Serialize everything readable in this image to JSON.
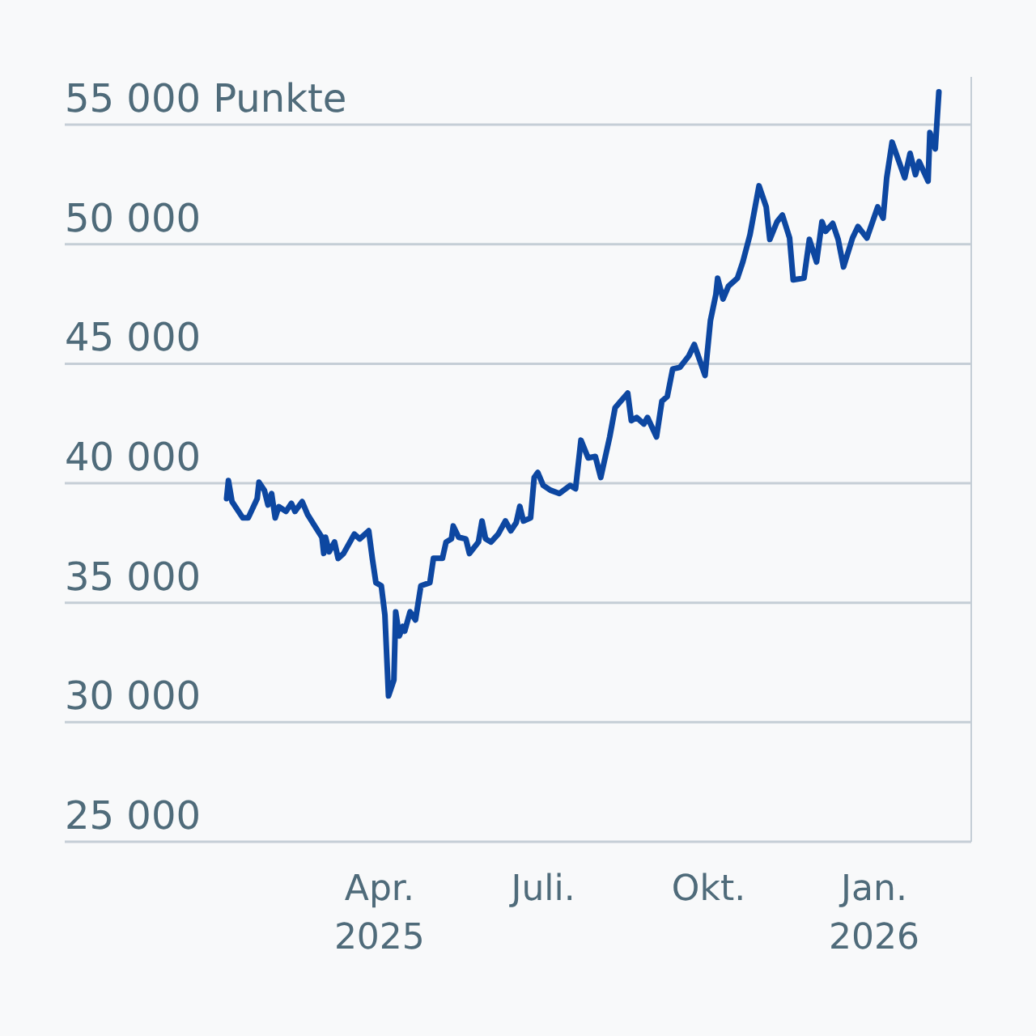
{
  "chart_data": {
    "type": "line",
    "x": [
      "2025-01-06",
      "2025-01-07",
      "2025-01-09",
      "2025-01-15",
      "2025-01-18",
      "2025-01-23",
      "2025-01-24",
      "2025-01-27",
      "2025-01-29",
      "2025-01-31",
      "2025-02-02",
      "2025-02-04",
      "2025-02-08",
      "2025-02-11",
      "2025-02-13",
      "2025-02-17",
      "2025-02-20",
      "2025-02-24",
      "2025-02-28",
      "2025-03-01",
      "2025-03-02",
      "2025-03-04",
      "2025-03-07",
      "2025-03-09",
      "2025-03-12",
      "2025-03-18",
      "2025-03-21",
      "2025-03-26",
      "2025-03-28",
      "2025-03-30",
      "2025-04-02",
      "2025-04-04",
      "2025-04-06",
      "2025-04-09",
      "2025-04-10",
      "2025-04-12",
      "2025-04-14",
      "2025-04-15",
      "2025-04-18",
      "2025-04-21",
      "2025-04-24",
      "2025-04-29",
      "2025-05-01",
      "2025-05-06",
      "2025-05-08",
      "2025-05-11",
      "2025-05-12",
      "2025-05-15",
      "2025-05-19",
      "2025-05-21",
      "2025-05-26",
      "2025-05-28",
      "2025-05-30",
      "2025-06-02",
      "2025-06-06",
      "2025-06-10",
      "2025-06-13",
      "2025-06-16",
      "2025-06-18",
      "2025-06-20",
      "2025-06-24",
      "2025-06-26",
      "2025-06-28",
      "2025-07-01",
      "2025-07-05",
      "2025-07-10",
      "2025-07-16",
      "2025-07-19",
      "2025-07-22",
      "2025-07-26",
      "2025-07-30",
      "2025-08-02",
      "2025-08-07",
      "2025-08-10",
      "2025-08-17",
      "2025-08-19",
      "2025-08-22",
      "2025-08-26",
      "2025-08-28",
      "2025-09-02",
      "2025-09-05",
      "2025-09-08",
      "2025-09-11",
      "2025-09-15",
      "2025-09-20",
      "2025-09-23",
      "2025-09-29",
      "2025-10-02",
      "2025-10-05",
      "2025-10-06",
      "2025-10-09",
      "2025-10-12",
      "2025-10-17",
      "2025-10-20",
      "2025-10-24",
      "2025-10-29",
      "2025-11-02",
      "2025-11-04",
      "2025-11-08",
      "2025-11-11",
      "2025-11-15",
      "2025-11-17",
      "2025-11-23",
      "2025-11-26",
      "2025-11-30",
      "2025-12-03",
      "2025-12-05",
      "2025-12-09",
      "2025-12-12",
      "2025-12-15",
      "2025-12-20",
      "2025-12-23",
      "2025-12-28",
      "2026-01-03",
      "2026-01-06",
      "2026-01-08",
      "2026-01-11",
      "2026-01-18",
      "2026-01-21",
      "2026-01-24",
      "2026-01-26",
      "2026-01-31",
      "2026-02-01",
      "2026-02-04",
      "2026-02-06"
    ],
    "series": [
      {
        "color": "#0d47a1",
        "values": [
          39360,
          40110,
          39230,
          38550,
          38550,
          39360,
          40040,
          39700,
          39090,
          39570,
          38550,
          39020,
          38820,
          39160,
          38820,
          39230,
          38690,
          38210,
          37740,
          37060,
          37740,
          37130,
          37540,
          36850,
          37060,
          37870,
          37670,
          38010,
          36860,
          35840,
          35710,
          34490,
          31100,
          31770,
          34620,
          33610,
          34010,
          33810,
          34620,
          34280,
          35710,
          35840,
          36860,
          36860,
          37540,
          37670,
          38210,
          37740,
          37670,
          37060,
          37540,
          38420,
          37670,
          37540,
          37870,
          38420,
          38010,
          38350,
          39030,
          38420,
          38550,
          40240,
          40450,
          39910,
          39710,
          39570,
          39910,
          39770,
          41800,
          41060,
          41120,
          40240,
          41940,
          43160,
          43770,
          42620,
          42750,
          42480,
          42750,
          41940,
          43430,
          43630,
          44780,
          44850,
          45330,
          45800,
          44510,
          46810,
          47890,
          48580,
          47710,
          48240,
          48580,
          49260,
          50400,
          52440,
          51560,
          50200,
          50940,
          51220,
          50260,
          48510,
          48580,
          50200,
          49260,
          50940,
          50540,
          50870,
          50200,
          49050,
          50260,
          50740,
          50260,
          51560,
          51090,
          52780,
          54270,
          52780,
          53800,
          52910,
          53460,
          52640,
          54670,
          53990,
          56370
        ]
      }
    ],
    "xlim": [
      "2024-10-08",
      "2026-02-24"
    ],
    "xticks": [
      {
        "value": "2025-04-01",
        "label": "Apr.\n2025"
      },
      {
        "value": "2025-07-01",
        "label": "Juli."
      },
      {
        "value": "2025-10-01",
        "label": "Okt."
      },
      {
        "value": "2026-01-01",
        "label": "Jan.\n2026"
      }
    ],
    "ylim": [
      25000,
      57000
    ],
    "yticks": [
      {
        "value": 25000,
        "label": "25 000"
      },
      {
        "value": 30000,
        "label": "30 000"
      },
      {
        "value": 35000,
        "label": "35 000"
      },
      {
        "value": 40000,
        "label": "40 000"
      },
      {
        "value": 45000,
        "label": "45 000"
      },
      {
        "value": 50000,
        "label": "50 000"
      },
      {
        "value": 55000,
        "label": "55 000 Punkte"
      }
    ],
    "grid": "y",
    "line_style": "solid",
    "marker": "none"
  }
}
